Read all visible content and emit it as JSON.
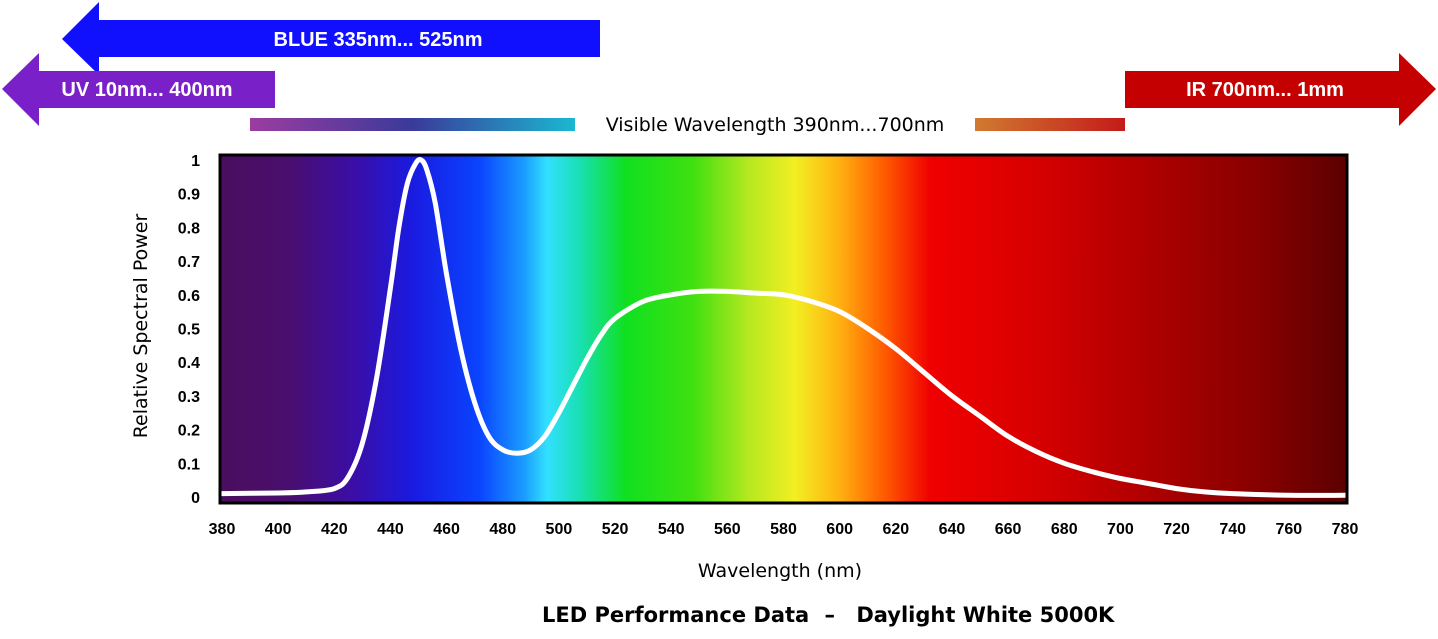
{
  "bands": {
    "blue": {
      "label": "BLUE  335nm... 525nm",
      "color": "#1010ff"
    },
    "uv": {
      "label": "UV  10nm... 400nm",
      "color": "#7a20c8"
    },
    "ir": {
      "label": "IR  700nm... 1mm",
      "color": "#c40000"
    },
    "visible": {
      "label": "Visible Wavelength 390nm...700nm"
    }
  },
  "footer": {
    "prefix": "LED Performance Data",
    "dash": "–",
    "product": "Daylight White 5000K"
  },
  "chart_data": {
    "type": "line",
    "title": "LED Performance Data – Daylight White 5000K",
    "xlabel": "Wavelength (nm)",
    "ylabel": "Relative Spectral Power",
    "xlim": [
      380,
      780
    ],
    "ylim": [
      0,
      1
    ],
    "xticks": [
      380,
      400,
      420,
      440,
      460,
      480,
      500,
      520,
      540,
      560,
      580,
      600,
      620,
      640,
      660,
      680,
      700,
      720,
      740,
      760,
      780
    ],
    "yticks": [
      "0",
      "0.1",
      "0.2",
      "0.3",
      "0.4",
      "0.5",
      "0.6",
      "0.7",
      "0.8",
      "0.9",
      "1"
    ],
    "grid": false,
    "background": "visible spectrum gradient",
    "series": [
      {
        "color": "#ffffff",
        "x": [
          380,
          400,
          410,
          420,
          425,
          430,
          435,
          440,
          443,
          446,
          449,
          451,
          453,
          456,
          460,
          465,
          470,
          475,
          480,
          485,
          490,
          495,
          500,
          505,
          510,
          515,
          520,
          530,
          540,
          550,
          560,
          570,
          580,
          590,
          600,
          610,
          620,
          630,
          640,
          650,
          660,
          670,
          680,
          690,
          700,
          710,
          720,
          730,
          740,
          760,
          780
        ],
        "y": [
          0.01,
          0.012,
          0.015,
          0.025,
          0.06,
          0.16,
          0.35,
          0.62,
          0.8,
          0.93,
          0.99,
          1.0,
          0.97,
          0.87,
          0.66,
          0.44,
          0.28,
          0.18,
          0.14,
          0.13,
          0.14,
          0.18,
          0.25,
          0.33,
          0.41,
          0.48,
          0.53,
          0.58,
          0.6,
          0.61,
          0.61,
          0.605,
          0.6,
          0.58,
          0.55,
          0.5,
          0.44,
          0.37,
          0.3,
          0.24,
          0.18,
          0.135,
          0.1,
          0.075,
          0.055,
          0.04,
          0.025,
          0.015,
          0.01,
          0.005,
          0.005
        ]
      }
    ]
  }
}
